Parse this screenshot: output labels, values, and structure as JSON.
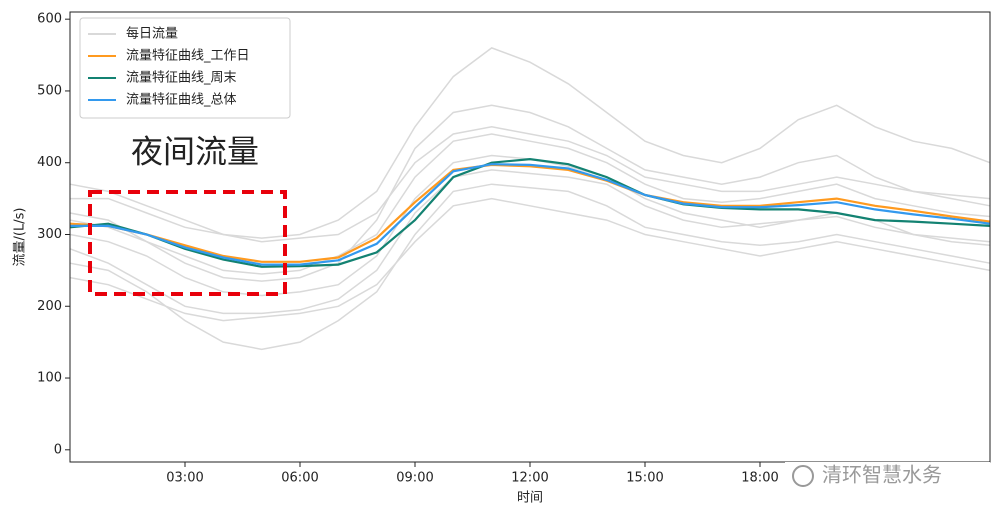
{
  "chart_data": {
    "type": "line",
    "x_label": "时间",
    "y_label": "流量/(L/s)",
    "annotation": "夜间流量",
    "watermark": "清环智慧水务",
    "x": [
      0,
      1,
      2,
      3,
      4,
      5,
      6,
      7,
      8,
      9,
      10,
      11,
      12,
      13,
      14,
      15,
      16,
      17,
      18,
      19,
      20,
      21,
      22,
      23,
      24
    ],
    "xlim": [
      0,
      24
    ],
    "xticks": [
      {
        "value": 3,
        "label": "03:00"
      },
      {
        "value": 6,
        "label": "06:00"
      },
      {
        "value": 9,
        "label": "09:00"
      },
      {
        "value": 12,
        "label": "12:00"
      },
      {
        "value": 15,
        "label": "15:00"
      },
      {
        "value": 18,
        "label": "18:00"
      }
    ],
    "ylim": [
      -17,
      610
    ],
    "yticks": [
      0,
      100,
      200,
      300,
      400,
      500,
      600
    ],
    "legend": "upper left",
    "series": [
      {
        "name": "每日流量",
        "color": "#d9d9d9",
        "values": [
          330,
          320,
          290,
          260,
          240,
          235,
          240,
          260,
          320,
          420,
          470,
          480,
          470,
          450,
          420,
          390,
          380,
          370,
          380,
          400,
          410,
          380,
          360,
          350,
          340
        ]
      },
      {
        "color": "#d9d9d9",
        "values": [
          280,
          260,
          230,
          200,
          190,
          190,
          195,
          210,
          250,
          330,
          380,
          390,
          385,
          380,
          370,
          340,
          320,
          310,
          315,
          320,
          330,
          320,
          300,
          290,
          285
        ]
      },
      {
        "color": "#d9d9d9",
        "values": [
          350,
          350,
          330,
          310,
          300,
          290,
          295,
          300,
          330,
          400,
          440,
          450,
          440,
          430,
          410,
          380,
          370,
          360,
          360,
          370,
          380,
          370,
          360,
          355,
          350
        ]
      },
      {
        "color": "#d9d9d9",
        "values": [
          300,
          290,
          270,
          240,
          220,
          215,
          220,
          230,
          270,
          350,
          400,
          410,
          405,
          395,
          380,
          350,
          330,
          320,
          310,
          320,
          325,
          310,
          300,
          295,
          290
        ]
      },
      {
        "color": "#d9d9d9",
        "values": [
          260,
          250,
          220,
          180,
          150,
          140,
          150,
          180,
          220,
          300,
          360,
          370,
          365,
          360,
          340,
          310,
          300,
          290,
          285,
          290,
          300,
          290,
          280,
          270,
          260
        ]
      },
      {
        "color": "#d9d9d9",
        "values": [
          370,
          360,
          340,
          320,
          300,
          295,
          300,
          320,
          360,
          450,
          520,
          560,
          540,
          510,
          470,
          430,
          410,
          400,
          420,
          460,
          480,
          450,
          430,
          420,
          400
        ]
      },
      {
        "color": "#d9d9d9",
        "values": [
          240,
          230,
          210,
          190,
          180,
          185,
          190,
          200,
          230,
          290,
          340,
          350,
          340,
          330,
          320,
          300,
          290,
          280,
          270,
          280,
          290,
          280,
          270,
          260,
          250
        ]
      },
      {
        "color": "#d9d9d9",
        "values": [
          320,
          310,
          290,
          270,
          250,
          245,
          250,
          270,
          300,
          380,
          430,
          440,
          430,
          420,
          400,
          370,
          350,
          345,
          350,
          360,
          370,
          350,
          340,
          330,
          325
        ]
      },
      {
        "name": "流量特征曲线_工作日",
        "color": "#ff9a1f",
        "values": [
          315,
          312,
          300,
          285,
          270,
          262,
          262,
          268,
          295,
          345,
          390,
          397,
          395,
          390,
          375,
          355,
          345,
          340,
          340,
          345,
          350,
          340,
          333,
          325,
          318
        ]
      },
      {
        "name": "流量特征曲线_周末",
        "color": "#138272",
        "values": [
          310,
          315,
          300,
          280,
          265,
          255,
          256,
          258,
          275,
          320,
          380,
          400,
          405,
          398,
          380,
          355,
          342,
          337,
          335,
          335,
          330,
          320,
          318,
          315,
          312
        ]
      },
      {
        "name": "流量特征曲线_总体",
        "color": "#3399ee",
        "values": [
          312,
          312,
          300,
          282,
          268,
          258,
          258,
          264,
          287,
          338,
          388,
          398,
          397,
          392,
          376,
          355,
          343,
          338,
          338,
          341,
          345,
          335,
          328,
          322,
          315
        ]
      }
    ]
  }
}
